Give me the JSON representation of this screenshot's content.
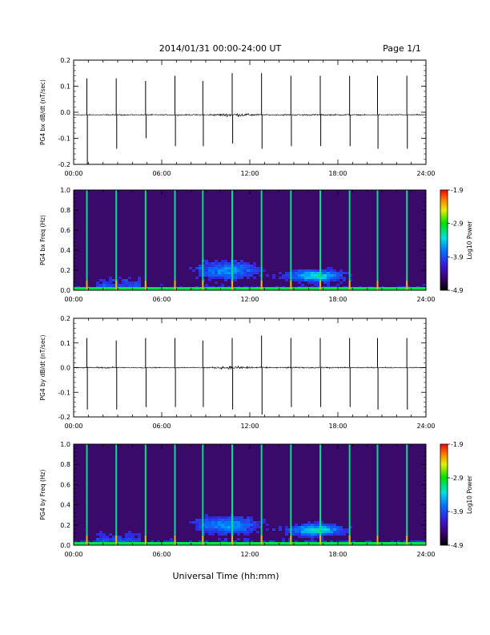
{
  "header": {
    "title": "2014/01/31  00:00-24:00 UT",
    "page": "Page 1/1"
  },
  "xlabel": "Universal Time (hh:mm)",
  "x_ticks": [
    "00:00",
    "06:00",
    "12:00",
    "18:00",
    "24:00"
  ],
  "colors": {
    "background": "#ffffff",
    "trace": "#000000",
    "spectrogram_background": "#3a0a6a"
  },
  "chart_data": [
    {
      "type": "line",
      "ylabel": "PG4 bx dB/dt (nT/sec)",
      "xlim": [
        0,
        24
      ],
      "ylim": [
        -0.2,
        0.2
      ],
      "y_ticks": [
        "0.2",
        "0.1",
        "0.0",
        "-0.1",
        "-0.2"
      ],
      "baseline": -0.01,
      "calibration_pulses": [
        {
          "t": 0.9,
          "top": 0.13,
          "bottom": -0.2
        },
        {
          "t": 2.9,
          "top": 0.13,
          "bottom": -0.14
        },
        {
          "t": 4.9,
          "top": 0.12,
          "bottom": -0.1
        },
        {
          "t": 6.9,
          "top": 0.14,
          "bottom": -0.13
        },
        {
          "t": 8.8,
          "top": 0.12,
          "bottom": -0.13
        },
        {
          "t": 10.8,
          "top": 0.15,
          "bottom": -0.12
        },
        {
          "t": 12.8,
          "top": 0.15,
          "bottom": -0.14
        },
        {
          "t": 14.8,
          "top": 0.14,
          "bottom": -0.13
        },
        {
          "t": 16.8,
          "top": 0.14,
          "bottom": -0.13
        },
        {
          "t": 18.8,
          "top": 0.14,
          "bottom": -0.13
        },
        {
          "t": 20.7,
          "top": 0.14,
          "bottom": -0.14
        },
        {
          "t": 22.7,
          "top": 0.14,
          "bottom": -0.14
        }
      ]
    },
    {
      "type": "heatmap",
      "ylabel": "PG4 bx Freq (Hz)",
      "xlim": [
        0,
        24
      ],
      "ylim": [
        0.0,
        1.0
      ],
      "y_ticks": [
        "1.0",
        "0.8",
        "0.6",
        "0.4",
        "0.2",
        "0.0"
      ],
      "colorbar": {
        "label": "Log10 Power",
        "ticks": [
          "-1.9",
          "-2.9",
          "-3.9",
          "-4.9"
        ],
        "range": [
          -4.9,
          -1.9
        ]
      },
      "pulse_times": [
        0.9,
        2.9,
        4.9,
        6.9,
        8.8,
        10.8,
        12.8,
        14.8,
        16.8,
        18.8,
        20.7,
        22.7
      ]
    },
    {
      "type": "line",
      "ylabel": "PG4 by dB/dt (nT/sec)",
      "xlim": [
        0,
        24
      ],
      "ylim": [
        -0.2,
        0.2
      ],
      "y_ticks": [
        "0.2",
        "0.1",
        "0.0",
        "-0.1",
        "-0.2"
      ],
      "baseline": 0.0,
      "calibration_pulses": [
        {
          "t": 0.9,
          "top": 0.12,
          "bottom": -0.17
        },
        {
          "t": 2.9,
          "top": 0.11,
          "bottom": -0.17
        },
        {
          "t": 4.9,
          "top": 0.12,
          "bottom": -0.16
        },
        {
          "t": 6.9,
          "top": 0.12,
          "bottom": -0.16
        },
        {
          "t": 8.8,
          "top": 0.11,
          "bottom": -0.16
        },
        {
          "t": 10.8,
          "top": 0.12,
          "bottom": -0.17
        },
        {
          "t": 12.8,
          "top": 0.13,
          "bottom": -0.19
        },
        {
          "t": 14.8,
          "top": 0.12,
          "bottom": -0.16
        },
        {
          "t": 16.8,
          "top": 0.12,
          "bottom": -0.16
        },
        {
          "t": 18.8,
          "top": 0.12,
          "bottom": -0.16
        },
        {
          "t": 20.7,
          "top": 0.12,
          "bottom": -0.17
        },
        {
          "t": 22.7,
          "top": 0.12,
          "bottom": -0.17
        }
      ]
    },
    {
      "type": "heatmap",
      "ylabel": "PG4 by Freq (Hz)",
      "xlim": [
        0,
        24
      ],
      "ylim": [
        0.0,
        1.0
      ],
      "y_ticks": [
        "1.0",
        "0.8",
        "0.6",
        "0.4",
        "0.2",
        "0.0"
      ],
      "colorbar": {
        "label": "Log10 Power",
        "ticks": [
          "-1.9",
          "-2.9",
          "-3.9",
          "-4.9"
        ],
        "range": [
          -4.9,
          -1.9
        ]
      },
      "pulse_times": [
        0.9,
        2.9,
        4.9,
        6.9,
        8.8,
        10.8,
        12.8,
        14.8,
        16.8,
        18.8,
        20.7,
        22.7
      ]
    }
  ]
}
